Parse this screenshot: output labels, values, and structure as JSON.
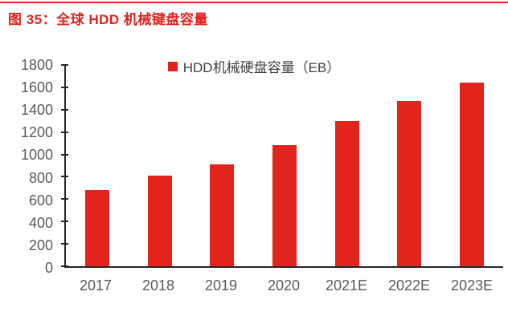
{
  "header": {
    "title": "图 35：全球 HDD 机械键盘容量",
    "title_color": "#e2231e",
    "rule_color": "#e2231e"
  },
  "chart_data": {
    "type": "bar",
    "title": "图 35：全球 HDD 机械键盘容量",
    "legend": [
      "HDD机械硬盘容量（EB）"
    ],
    "legend_position": "top-center",
    "categories": [
      "2017",
      "2018",
      "2019",
      "2020",
      "2021E",
      "2022E",
      "2023E"
    ],
    "values": [
      680,
      810,
      910,
      1080,
      1300,
      1480,
      1640
    ],
    "ylim": [
      0,
      1800
    ],
    "ytick_step": 200,
    "yticks": [
      0,
      200,
      400,
      600,
      800,
      1000,
      1200,
      1400,
      1600,
      1800
    ],
    "grid": false,
    "bar_color": "#e2231e",
    "axis_line_color": "#262626",
    "tick_label_color": "#595959",
    "legend_text_color": "#404040"
  }
}
